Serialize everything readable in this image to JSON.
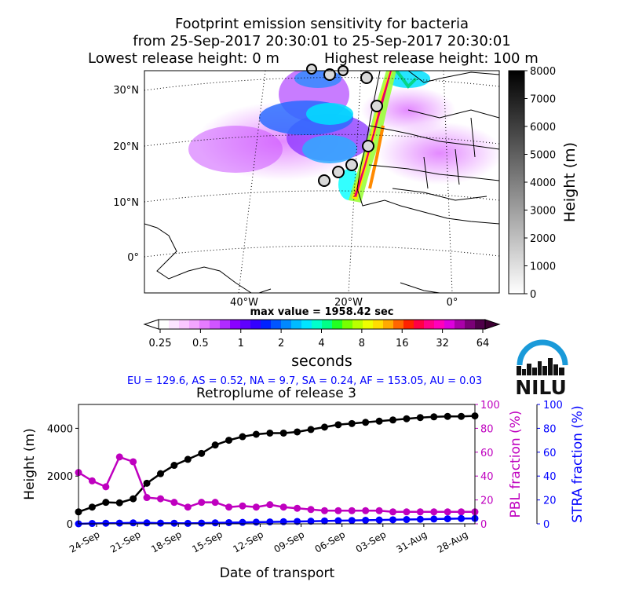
{
  "map": {
    "title_lines": [
      "Footprint emission sensitivity for bacteria",
      "from 25-Sep-2017 20:30:01 to 25-Sep-2017 20:30:01"
    ],
    "lowest_release": "Lowest release height: 0 m",
    "highest_release": "Highest release height: 100 m",
    "lat_labels": [
      "30°N",
      "20°N",
      "10°N",
      "0°"
    ],
    "lon_labels": [
      "40°W",
      "20°W",
      "0°"
    ],
    "height_colorbar": {
      "label": "Height (m)",
      "ticks": [
        "0",
        "1000",
        "2000",
        "3000",
        "4000",
        "5000",
        "6000",
        "7000",
        "8000"
      ]
    },
    "max_value": "max value = 1958.42 sec",
    "sensitivity_colorbar": {
      "label": "seconds",
      "ticks": [
        "0.25",
        "0.5",
        "1",
        "2",
        "4",
        "8",
        "16",
        "32",
        "64"
      ]
    },
    "region_fractions": "EU = 129.6,  AS = 0.52,  NA = 9.7,  SA = 0.24,  AF = 153.05,  AU = 0.03"
  },
  "logo": {
    "text": "NILU"
  },
  "colors": {
    "height": "#000000",
    "pbl": "#bf00bf",
    "stra": "#0000ff"
  },
  "chart_data": {
    "type": "line",
    "title": "Retroplume of release 3",
    "xlabel": "Date of transport",
    "ylabel": "Height (m)",
    "y2label": "PBL fraction (%)",
    "y3label": "STRA fraction (%)",
    "x_tick_labels": [
      "24-Sep",
      "21-Sep",
      "18-Sep",
      "15-Sep",
      "12-Sep",
      "09-Sep",
      "06-Sep",
      "03-Sep",
      "31-Aug",
      "28-Aug"
    ],
    "ylim": [
      0,
      5000
    ],
    "y_ticks": [
      "0",
      "2000",
      "4000"
    ],
    "y2lim": [
      0,
      100
    ],
    "y2_ticks": [
      "0",
      "20",
      "40",
      "60",
      "80",
      "100"
    ],
    "y3lim": [
      0,
      100
    ],
    "y3_ticks": [
      "0",
      "20",
      "40",
      "60",
      "80",
      "100"
    ],
    "series": [
      {
        "axis": "height",
        "values": [
          500,
          700,
          900,
          880,
          1050,
          1700,
          2100,
          2450,
          2700,
          2950,
          3300,
          3500,
          3650,
          3750,
          3800,
          3800,
          3850,
          3950,
          4050,
          4150,
          4200,
          4250,
          4300,
          4350,
          4400,
          4450,
          4480,
          4500,
          4500,
          4520
        ]
      },
      {
        "axis": "pbl",
        "values": [
          43,
          36,
          31,
          56,
          52,
          22,
          21,
          18,
          14,
          18,
          18,
          14,
          15,
          14,
          16,
          14,
          13,
          12,
          11,
          11,
          11,
          11,
          11,
          10,
          10,
          10,
          10,
          10,
          10,
          10
        ]
      },
      {
        "axis": "stra",
        "values": [
          0,
          0.3,
          0.5,
          0.6,
          0.8,
          0.8,
          0.6,
          0.5,
          0.4,
          0.6,
          0.8,
          1.0,
          1.2,
          1.4,
          1.6,
          1.8,
          2.0,
          2.2,
          2.4,
          2.6,
          2.8,
          3.0,
          3.2,
          3.4,
          3.6,
          3.8,
          4.0,
          4.2,
          4.4,
          4.5
        ]
      }
    ]
  }
}
